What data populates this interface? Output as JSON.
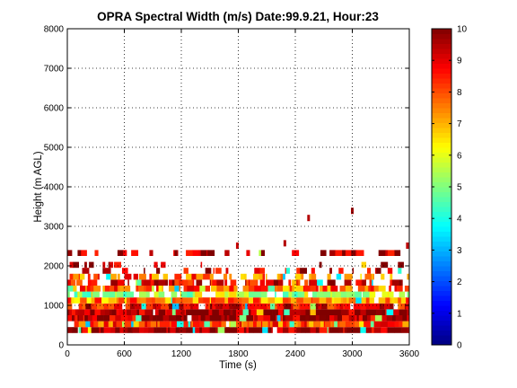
{
  "chart_data": {
    "type": "heatmap",
    "title": "OPRA Spectral Width (m/s)  Date:99.9.21, Hour:23",
    "xlabel": "Time (s)",
    "ylabel": "Height (m AGL)",
    "xlim": [
      0,
      3600
    ],
    "ylim": [
      0,
      8000
    ],
    "x_ticks": [
      0,
      600,
      1200,
      1800,
      2400,
      3000,
      3600
    ],
    "y_ticks": [
      0,
      1000,
      2000,
      3000,
      4000,
      5000,
      6000,
      7000,
      8000
    ],
    "grid": true,
    "colormap": "jet",
    "colorbar": {
      "min": 0,
      "max": 10,
      "ticks": [
        0,
        1,
        2,
        3,
        4,
        5,
        6,
        7,
        8,
        9,
        10
      ]
    },
    "layers": [
      {
        "bottom": 300,
        "top": 450,
        "value": 9.7,
        "coverage": 0.98
      },
      {
        "bottom": 450,
        "top": 600,
        "value": 8.0,
        "coverage": 0.96
      },
      {
        "bottom": 600,
        "top": 750,
        "value": 9.5,
        "coverage": 0.97
      },
      {
        "bottom": 750,
        "top": 900,
        "value": 9.8,
        "coverage": 0.98
      },
      {
        "bottom": 900,
        "top": 1050,
        "value": 8.8,
        "coverage": 0.95
      },
      {
        "bottom": 1050,
        "top": 1200,
        "value": 7.5,
        "coverage": 0.92
      },
      {
        "bottom": 1200,
        "top": 1350,
        "value": 5.5,
        "coverage": 0.85
      },
      {
        "bottom": 1350,
        "top": 1500,
        "value": 7.8,
        "coverage": 0.8
      },
      {
        "bottom": 1500,
        "top": 1650,
        "value": 9.0,
        "coverage": 0.72
      },
      {
        "bottom": 1650,
        "top": 1800,
        "value": 7.8,
        "coverage": 0.55
      },
      {
        "bottom": 1800,
        "top": 1950,
        "value": 9.5,
        "coverage": 0.25
      },
      {
        "bottom": 1950,
        "top": 2100,
        "value": 9.6,
        "coverage": 0.12
      },
      {
        "bottom": 2250,
        "top": 2400,
        "value": 9.6,
        "coverage": 0.3
      }
    ],
    "isolated_points": [
      {
        "time": 2540,
        "height": 3200,
        "value": 9.5
      },
      {
        "time": 3000,
        "height": 3380,
        "value": 9.7
      },
      {
        "time": 3580,
        "height": 2500,
        "value": 9.4
      },
      {
        "time": 2290,
        "height": 2560,
        "value": 9.5
      },
      {
        "time": 1790,
        "height": 2500,
        "value": 9.3
      }
    ]
  },
  "colors": {
    "background": "#ffffff",
    "axes": "#000000",
    "grid": "#000000"
  }
}
